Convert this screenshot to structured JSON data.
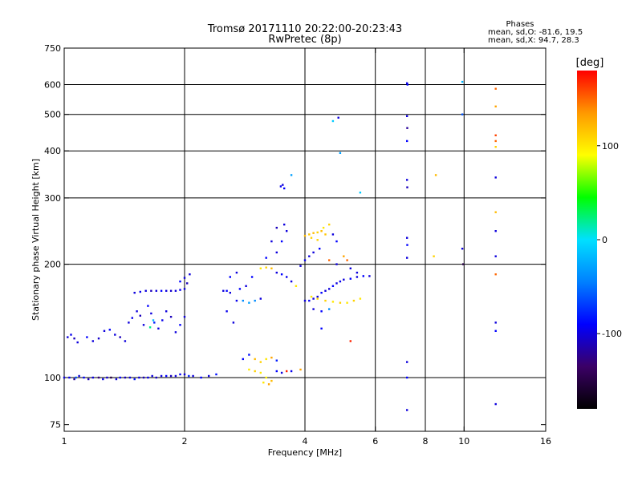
{
  "title_line1": "Tromsø 20171110 20:22:00-20:23:43",
  "title_line2": "RwPretec (8p)",
  "stats": {
    "heading": "Phases",
    "line_o": "mean, sd,O: -81.6, 19.5",
    "line_x": "mean, sd,X:  94.7, 28.3"
  },
  "colorbar": {
    "unit_label": "[deg]",
    "min": -180,
    "max": 180,
    "ticks": [
      100,
      0,
      -100
    ],
    "tick_labels": [
      "100",
      "0",
      "-100"
    ],
    "colors": [
      "#000000",
      "#3b0066",
      "#0000ff",
      "#0080ff",
      "#00e0ff",
      "#00ff00",
      "#ffff00",
      "#ff9900",
      "#ff0000"
    ]
  },
  "chart_data": {
    "type": "scatter",
    "title": "Tromsø 20171110 20:22:00-20:23:43",
    "subtitle": "RwPretec (8p)",
    "xlabel": "Frequency [MHz]",
    "ylabel": "Stationary phase Virtual Height [km]",
    "x_scale": "log",
    "y_scale": "log",
    "xlim": [
      1,
      16
    ],
    "ylim": [
      72,
      750
    ],
    "x_ticks": [
      1,
      2,
      4,
      6,
      8,
      10,
      16
    ],
    "x_tick_labels": [
      "1",
      "2",
      "4",
      "6",
      "8",
      "10",
      "16"
    ],
    "y_ticks": [
      75,
      100,
      200,
      300,
      400,
      500,
      600,
      750
    ],
    "y_tick_labels": [
      "75",
      "100",
      "200",
      "300",
      "400",
      "500",
      "600",
      "750"
    ],
    "x_gridlines": [
      2,
      4,
      6,
      8,
      10
    ],
    "y_gridlines": [
      100,
      200,
      300,
      400,
      500,
      600
    ],
    "color_meaning": "phase [deg]",
    "points": [
      [
        1.0,
        100,
        -100
      ],
      [
        1.03,
        100,
        -95
      ],
      [
        1.06,
        99,
        -120
      ],
      [
        1.09,
        101,
        -100
      ],
      [
        1.12,
        100,
        -90
      ],
      [
        1.15,
        99,
        -110
      ],
      [
        1.18,
        100,
        -100
      ],
      [
        1.22,
        100,
        -130
      ],
      [
        1.25,
        99,
        -95
      ],
      [
        1.28,
        100,
        -105
      ],
      [
        1.31,
        100,
        -150
      ],
      [
        1.35,
        99,
        -100
      ],
      [
        1.38,
        100,
        -90
      ],
      [
        1.42,
        100,
        -110
      ],
      [
        1.46,
        100,
        -100
      ],
      [
        1.5,
        99,
        -85
      ],
      [
        1.54,
        100,
        -100
      ],
      [
        1.58,
        100,
        -110
      ],
      [
        1.62,
        100,
        -95
      ],
      [
        1.66,
        101,
        -100
      ],
      [
        1.7,
        100,
        -105
      ],
      [
        1.75,
        101,
        -100
      ],
      [
        1.8,
        101,
        -90
      ],
      [
        1.85,
        101,
        -110
      ],
      [
        1.9,
        101,
        -100
      ],
      [
        1.95,
        102,
        -95
      ],
      [
        2.0,
        102,
        -100
      ],
      [
        2.05,
        101,
        -80
      ],
      [
        2.1,
        101,
        -100
      ],
      [
        2.2,
        100,
        -90
      ],
      [
        2.3,
        101,
        -100
      ],
      [
        2.4,
        102,
        -85
      ],
      [
        1.07,
        100,
        -60
      ],
      [
        1.02,
        128,
        -100
      ],
      [
        1.04,
        130,
        -95
      ],
      [
        1.06,
        127,
        -110
      ],
      [
        1.08,
        124,
        -100
      ],
      [
        1.14,
        128,
        -90
      ],
      [
        1.18,
        125,
        -100
      ],
      [
        1.22,
        127,
        -105
      ],
      [
        1.26,
        133,
        -100
      ],
      [
        1.3,
        134,
        -90
      ],
      [
        1.34,
        130,
        -100
      ],
      [
        1.38,
        128,
        -110
      ],
      [
        1.42,
        125,
        -100
      ],
      [
        1.45,
        140,
        -100
      ],
      [
        1.48,
        144,
        -95
      ],
      [
        1.52,
        150,
        -100
      ],
      [
        1.55,
        146,
        -110
      ],
      [
        1.58,
        138,
        -100
      ],
      [
        1.62,
        155,
        -90
      ],
      [
        1.65,
        148,
        -100
      ],
      [
        1.68,
        140,
        -80
      ],
      [
        1.72,
        135,
        -100
      ],
      [
        1.76,
        142,
        -95
      ],
      [
        1.8,
        150,
        -100
      ],
      [
        1.85,
        145,
        -110
      ],
      [
        1.9,
        132,
        -100
      ],
      [
        1.95,
        138,
        -90
      ],
      [
        2.0,
        145,
        -100
      ],
      [
        1.67,
        142,
        -20
      ],
      [
        1.64,
        136,
        20
      ],
      [
        1.5,
        168,
        -100
      ],
      [
        1.55,
        169,
        -95
      ],
      [
        1.6,
        170,
        -100
      ],
      [
        1.65,
        170,
        -110
      ],
      [
        1.7,
        170,
        -100
      ],
      [
        1.75,
        170,
        -90
      ],
      [
        1.8,
        170,
        -100
      ],
      [
        1.85,
        170,
        -105
      ],
      [
        1.9,
        170,
        -100
      ],
      [
        1.95,
        171,
        -95
      ],
      [
        2.0,
        172,
        -100
      ],
      [
        1.95,
        180,
        -90
      ],
      [
        2.0,
        184,
        -100
      ],
      [
        2.03,
        178,
        -110
      ],
      [
        2.06,
        188,
        -100
      ],
      [
        2.5,
        170,
        -100
      ],
      [
        2.55,
        170,
        -90
      ],
      [
        2.6,
        168,
        -100
      ],
      [
        2.7,
        160,
        -95
      ],
      [
        2.8,
        160,
        -40
      ],
      [
        2.9,
        158,
        -30
      ],
      [
        3.0,
        160,
        -40
      ],
      [
        3.1,
        162,
        -100
      ],
      [
        2.75,
        172,
        -90
      ],
      [
        2.85,
        175,
        -100
      ],
      [
        2.65,
        140,
        -100
      ],
      [
        2.55,
        150,
        -95
      ],
      [
        2.6,
        185,
        -90
      ],
      [
        2.7,
        190,
        -100
      ],
      [
        2.95,
        185,
        -90
      ],
      [
        2.8,
        112,
        -90
      ],
      [
        2.9,
        115,
        -85
      ],
      [
        3.0,
        112,
        120
      ],
      [
        3.1,
        110,
        110
      ],
      [
        3.2,
        112,
        100
      ],
      [
        3.3,
        113,
        130
      ],
      [
        3.4,
        111,
        -80
      ],
      [
        2.9,
        105,
        100
      ],
      [
        3.0,
        104,
        110
      ],
      [
        3.1,
        103,
        100
      ],
      [
        3.2,
        100,
        95
      ],
      [
        3.3,
        98,
        120
      ],
      [
        3.15,
        97,
        100
      ],
      [
        3.25,
        96,
        130
      ],
      [
        3.4,
        104,
        -90
      ],
      [
        3.5,
        103,
        -100
      ],
      [
        3.6,
        104,
        170
      ],
      [
        3.7,
        104,
        -95
      ],
      [
        3.9,
        105,
        130
      ],
      [
        3.1,
        195,
        100
      ],
      [
        3.2,
        196,
        110
      ],
      [
        3.3,
        195,
        120
      ],
      [
        3.4,
        190,
        -100
      ],
      [
        3.5,
        188,
        -90
      ],
      [
        3.6,
        185,
        -95
      ],
      [
        3.7,
        180,
        -100
      ],
      [
        3.8,
        175,
        100
      ],
      [
        3.2,
        208,
        -90
      ],
      [
        3.4,
        215,
        -100
      ],
      [
        3.5,
        230,
        -90
      ],
      [
        3.6,
        245,
        -100
      ],
      [
        3.4,
        250,
        -110
      ],
      [
        3.55,
        255,
        -100
      ],
      [
        3.48,
        322,
        -95
      ],
      [
        3.52,
        325,
        -100
      ],
      [
        3.55,
        318,
        -90
      ],
      [
        3.7,
        345,
        -30
      ],
      [
        3.3,
        230,
        -100
      ],
      [
        4.0,
        160,
        -100
      ],
      [
        4.1,
        160,
        -95
      ],
      [
        4.2,
        162,
        -100
      ],
      [
        4.3,
        164,
        -100
      ],
      [
        4.4,
        168,
        -90
      ],
      [
        4.5,
        170,
        -100
      ],
      [
        4.6,
        172,
        -100
      ],
      [
        4.7,
        175,
        -90
      ],
      [
        4.8,
        178,
        -100
      ],
      [
        4.9,
        180,
        -95
      ],
      [
        5.0,
        182,
        -100
      ],
      [
        5.2,
        183,
        -90
      ],
      [
        5.4,
        185,
        -100
      ],
      [
        5.6,
        186,
        -90
      ],
      [
        5.8,
        186,
        -100
      ],
      [
        4.15,
        164,
        100
      ],
      [
        4.3,
        162,
        110
      ],
      [
        4.5,
        160,
        110
      ],
      [
        4.7,
        159,
        100
      ],
      [
        4.9,
        158,
        110
      ],
      [
        5.1,
        158,
        100
      ],
      [
        5.3,
        160,
        110
      ],
      [
        5.5,
        162,
        100
      ],
      [
        4.2,
        152,
        -100
      ],
      [
        4.4,
        150,
        -90
      ],
      [
        4.6,
        152,
        -40
      ],
      [
        4.0,
        238,
        120
      ],
      [
        4.1,
        240,
        115
      ],
      [
        4.2,
        242,
        120
      ],
      [
        4.3,
        243,
        110
      ],
      [
        4.4,
        245,
        120
      ],
      [
        4.5,
        240,
        115
      ],
      [
        4.15,
        235,
        110
      ],
      [
        4.45,
        250,
        100
      ],
      [
        4.6,
        255,
        110
      ],
      [
        4.7,
        240,
        -100
      ],
      [
        4.8,
        230,
        -90
      ],
      [
        4.3,
        232,
        110
      ],
      [
        3.9,
        198,
        -100
      ],
      [
        4.0,
        205,
        -95
      ],
      [
        4.1,
        210,
        -100
      ],
      [
        4.2,
        215,
        -100
      ],
      [
        4.35,
        220,
        -90
      ],
      [
        4.6,
        205,
        150
      ],
      [
        4.8,
        200,
        -100
      ],
      [
        5.0,
        210,
        130
      ],
      [
        5.1,
        205,
        150
      ],
      [
        5.2,
        195,
        -100
      ],
      [
        5.4,
        190,
        -100
      ],
      [
        4.7,
        480,
        -10
      ],
      [
        4.85,
        490,
        -100
      ],
      [
        4.9,
        395,
        -30
      ],
      [
        5.5,
        310,
        -10
      ],
      [
        4.4,
        135,
        -90
      ],
      [
        5.2,
        125,
        170
      ],
      [
        7.2,
        605,
        -100
      ],
      [
        7.22,
        600,
        -90
      ],
      [
        7.2,
        495,
        -100
      ],
      [
        7.21,
        460,
        -120
      ],
      [
        7.2,
        425,
        -90
      ],
      [
        7.2,
        335,
        -100
      ],
      [
        7.21,
        320,
        -110
      ],
      [
        7.2,
        235,
        -100
      ],
      [
        7.21,
        225,
        -90
      ],
      [
        7.2,
        208,
        -100
      ],
      [
        7.2,
        110,
        -100
      ],
      [
        7.2,
        100,
        -90
      ],
      [
        7.2,
        82,
        -100
      ],
      [
        8.5,
        345,
        120
      ],
      [
        8.4,
        210,
        110
      ],
      [
        9.9,
        610,
        -20
      ],
      [
        9.9,
        500,
        -60
      ],
      [
        9.9,
        220,
        -100
      ],
      [
        9.95,
        200,
        -150
      ],
      [
        12.0,
        585,
        150
      ],
      [
        12.0,
        525,
        130
      ],
      [
        12.0,
        440,
        160
      ],
      [
        12.0,
        425,
        150
      ],
      [
        12.0,
        410,
        110
      ],
      [
        12.0,
        340,
        -100
      ],
      [
        12.0,
        275,
        120
      ],
      [
        12.0,
        245,
        -100
      ],
      [
        12.0,
        210,
        -100
      ],
      [
        12.0,
        188,
        150
      ],
      [
        12.0,
        140,
        -100
      ],
      [
        12.0,
        133,
        -90
      ],
      [
        12.0,
        85,
        -100
      ]
    ]
  }
}
